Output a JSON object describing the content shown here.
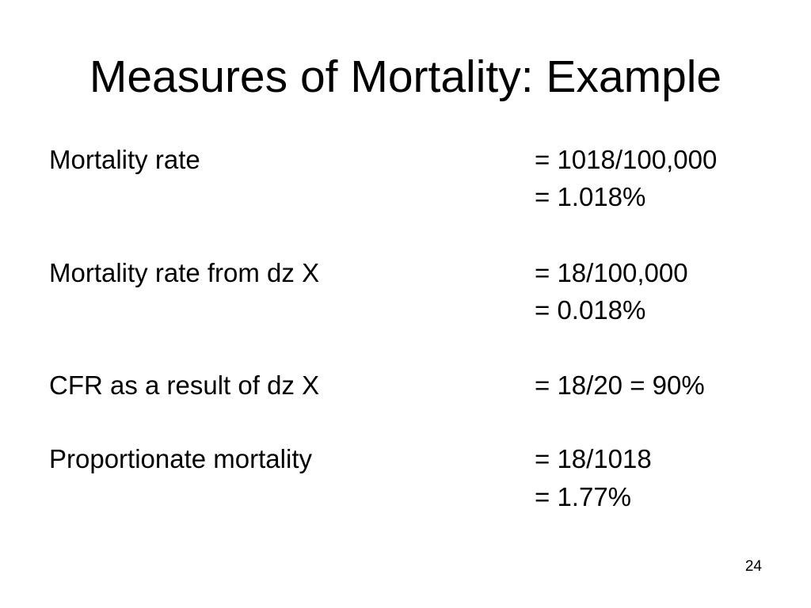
{
  "slide": {
    "title": "Measures of Mortality: Example",
    "items": [
      {
        "label": "Mortality rate",
        "values": [
          "= 1018/100,000",
          "= 1.018%"
        ]
      },
      {
        "label": "Mortality rate from dz X",
        "values": [
          "= 18/100,000",
          "= 0.018%"
        ]
      },
      {
        "label": "CFR as a result of dz X",
        "values": [
          "= 18/20 = 90%"
        ]
      },
      {
        "label": "Proportionate mortality",
        "values": [
          "= 18/1018",
          "= 1.77%"
        ]
      }
    ],
    "page_number": "24"
  }
}
